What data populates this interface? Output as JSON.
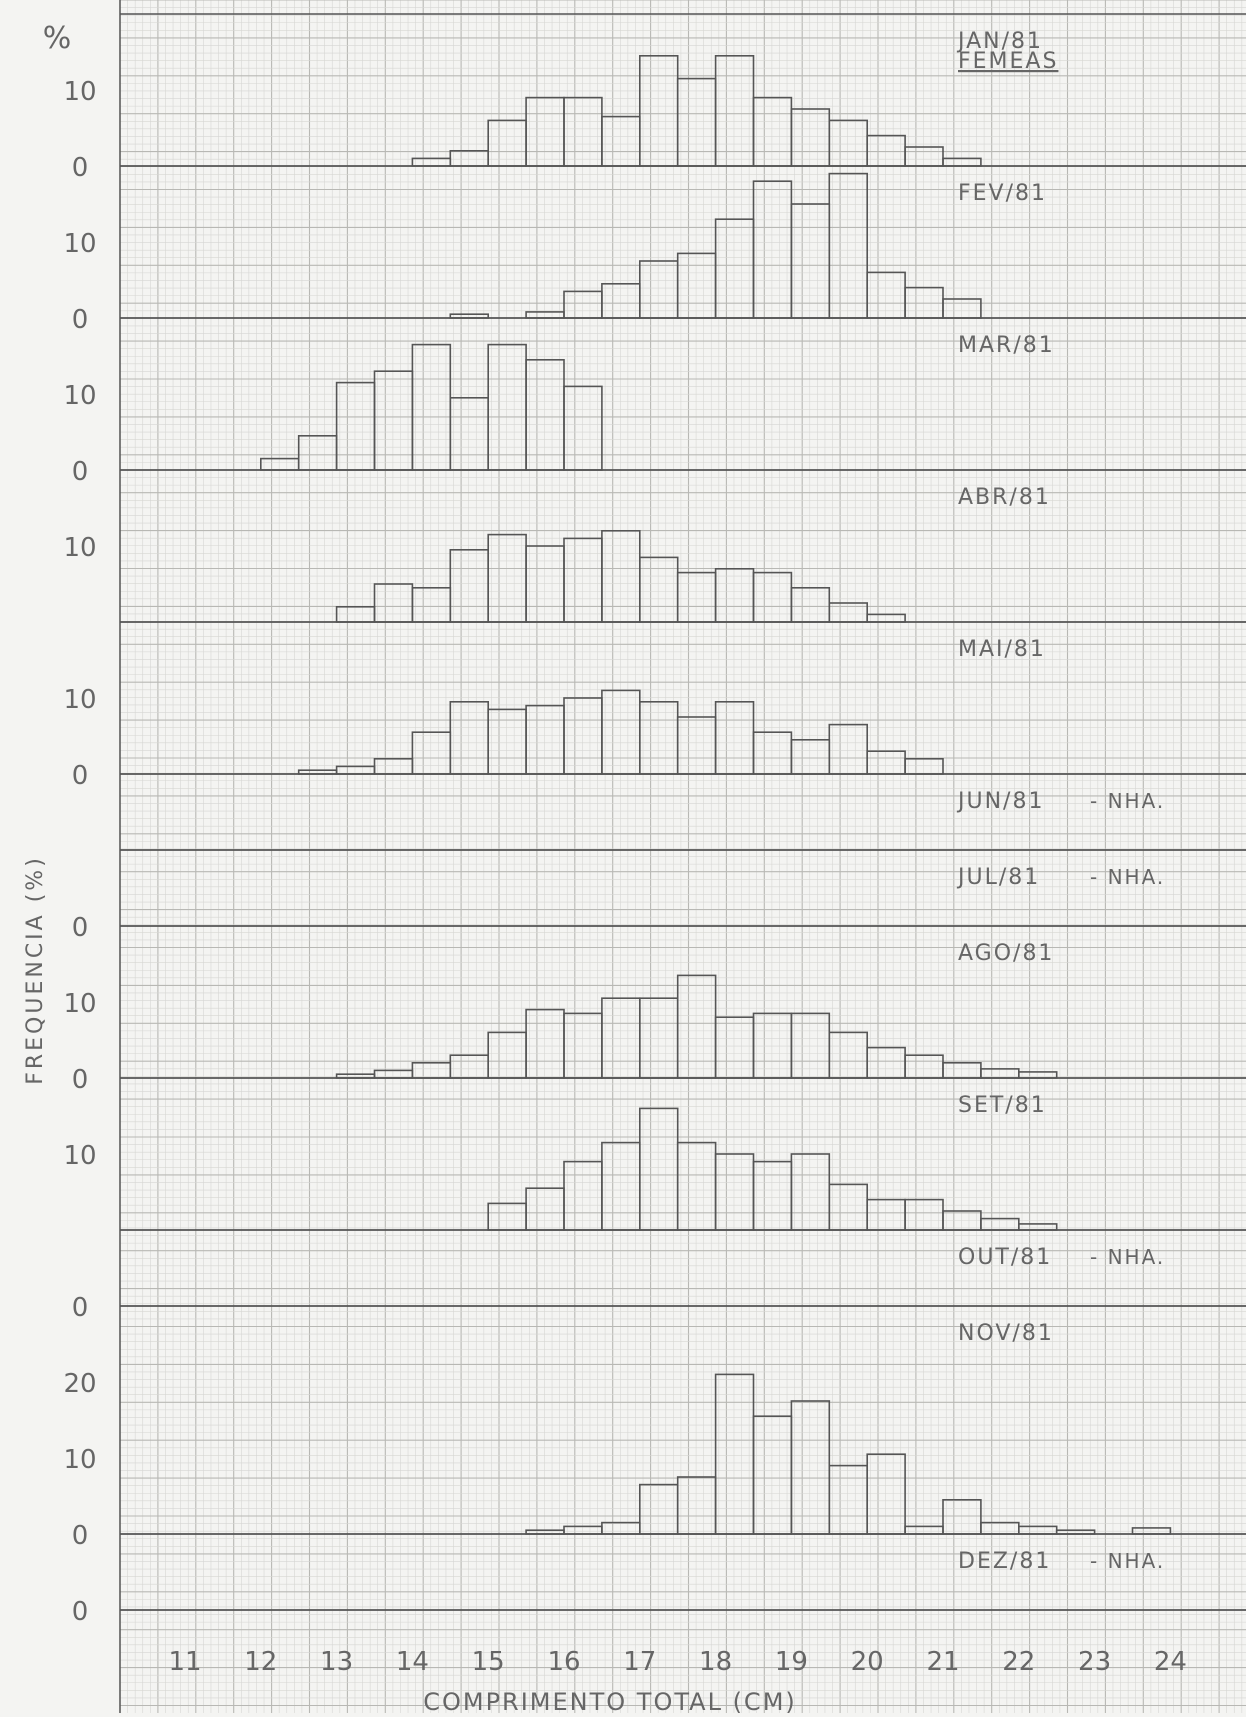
{
  "chart_data": {
    "type": "bar",
    "title": "FEMEAS",
    "ylabel": "FREQUENCIA (%)",
    "xlabel": "COMPRIMENTO TOTAL (CM)",
    "y_unit_label": "%",
    "grid": true,
    "x_ticks": [
      "11",
      "12",
      "13",
      "14",
      "15",
      "16",
      "17",
      "18",
      "19",
      "20",
      "21",
      "22",
      "23",
      "24"
    ],
    "x_tick_values": [
      11,
      12,
      13,
      14,
      15,
      16,
      17,
      18,
      19,
      20,
      21,
      22,
      23,
      24
    ],
    "bin_width": 0.5,
    "panels": [
      {
        "label": "JAN/81",
        "ymax": 20,
        "yticks": [
          "0",
          "10"
        ],
        "bins": [
          [
            14,
            1
          ],
          [
            14.5,
            2
          ],
          [
            15,
            6
          ],
          [
            15.5,
            9
          ],
          [
            16,
            9
          ],
          [
            16.5,
            6.5
          ],
          [
            17,
            14.5
          ],
          [
            17.5,
            11.5
          ],
          [
            18,
            14.5
          ],
          [
            18.5,
            9
          ],
          [
            19,
            7.5
          ],
          [
            19.5,
            6
          ],
          [
            20,
            4
          ],
          [
            20.5,
            2.5
          ],
          [
            21,
            1
          ]
        ]
      },
      {
        "label": "FEV/81",
        "ymax": 20,
        "yticks": [
          "0",
          "10"
        ],
        "bins": [
          [
            14.5,
            0.5
          ],
          [
            15.5,
            0.8
          ],
          [
            16,
            3.5
          ],
          [
            16.5,
            4.5
          ],
          [
            17,
            7.5
          ],
          [
            17.5,
            8.5
          ],
          [
            18,
            13
          ],
          [
            18.5,
            18
          ],
          [
            19,
            15
          ],
          [
            19.5,
            19
          ],
          [
            20,
            6
          ],
          [
            20.5,
            4
          ],
          [
            21,
            2.5
          ]
        ]
      },
      {
        "label": "MAR/81",
        "ymax": 20,
        "yticks": [
          "0",
          "10"
        ],
        "bins": [
          [
            12,
            1.5
          ],
          [
            12.5,
            4.5
          ],
          [
            13,
            11.5
          ],
          [
            13.5,
            13
          ],
          [
            14,
            16.5
          ],
          [
            14.5,
            9.5
          ],
          [
            15,
            16.5
          ],
          [
            15.5,
            14.5
          ],
          [
            16,
            11
          ]
        ]
      },
      {
        "label": "ABR/81",
        "ymax": 20,
        "yticks": [
          "10"
        ],
        "bins": [
          [
            13,
            2
          ],
          [
            13.5,
            5
          ],
          [
            14,
            4.5
          ],
          [
            14.5,
            9.5
          ],
          [
            15,
            11.5
          ],
          [
            15.5,
            10
          ],
          [
            16,
            11
          ],
          [
            16.5,
            12
          ],
          [
            17,
            8.5
          ],
          [
            17.5,
            6.5
          ],
          [
            18,
            7
          ],
          [
            18.5,
            6.5
          ],
          [
            19,
            4.5
          ],
          [
            19.5,
            2.5
          ],
          [
            20,
            1
          ]
        ]
      },
      {
        "label": "MAI/81",
        "ymax": 20,
        "yticks": [
          "0",
          "10"
        ],
        "bins": [
          [
            12.5,
            0.5
          ],
          [
            13,
            1
          ],
          [
            13.5,
            2
          ],
          [
            14,
            5.5
          ],
          [
            14.5,
            9.5
          ],
          [
            15,
            8.5
          ],
          [
            15.5,
            9
          ],
          [
            16,
            10
          ],
          [
            16.5,
            11
          ],
          [
            17,
            9.5
          ],
          [
            17.5,
            7.5
          ],
          [
            18,
            9.5
          ],
          [
            18.5,
            5.5
          ],
          [
            19,
            4.5
          ],
          [
            19.5,
            6.5
          ],
          [
            20,
            3
          ],
          [
            20.5,
            2
          ]
        ]
      },
      {
        "label": "JUN/81",
        "note": "- NHA.",
        "ymax": 10,
        "yticks": [],
        "bins": []
      },
      {
        "label": "JUL/81",
        "note": "- NHA.",
        "ymax": 10,
        "yticks": [
          "0"
        ],
        "bins": []
      },
      {
        "label": "AGO/81",
        "ymax": 20,
        "yticks": [
          "0",
          "10"
        ],
        "bins": [
          [
            13,
            0.5
          ],
          [
            13.5,
            1
          ],
          [
            14,
            2
          ],
          [
            14.5,
            3
          ],
          [
            15,
            6
          ],
          [
            15.5,
            9
          ],
          [
            16,
            8.5
          ],
          [
            16.5,
            10.5
          ],
          [
            17,
            10.5
          ],
          [
            17.5,
            13.5
          ],
          [
            18,
            8
          ],
          [
            18.5,
            8.5
          ],
          [
            19,
            8.5
          ],
          [
            19.5,
            6
          ],
          [
            20,
            4
          ],
          [
            20.5,
            3
          ],
          [
            21,
            2
          ],
          [
            21.5,
            1.2
          ],
          [
            22,
            0.8
          ]
        ]
      },
      {
        "label": "SET/81",
        "ymax": 20,
        "yticks": [
          "10"
        ],
        "bins": [
          [
            15,
            3.5
          ],
          [
            15.5,
            5.5
          ],
          [
            16,
            9
          ],
          [
            16.5,
            11.5
          ],
          [
            17,
            16
          ],
          [
            17.5,
            11.5
          ],
          [
            18,
            10
          ],
          [
            18.5,
            9
          ],
          [
            19,
            10
          ],
          [
            19.5,
            6
          ],
          [
            20,
            4
          ],
          [
            20.5,
            4
          ],
          [
            21,
            2.5
          ],
          [
            21.5,
            1.5
          ],
          [
            22,
            0.8
          ]
        ]
      },
      {
        "label": "OUT/81",
        "note": "- NHA.",
        "ymax": 10,
        "yticks": [
          "0"
        ],
        "bins": []
      },
      {
        "label": "NOV/81",
        "ymax": 30,
        "yticks": [
          "0",
          "10",
          "20"
        ],
        "bins": [
          [
            15.5,
            0.5
          ],
          [
            16,
            1
          ],
          [
            16.5,
            1.5
          ],
          [
            17,
            6.5
          ],
          [
            17.5,
            7.5
          ],
          [
            18,
            21
          ],
          [
            18.5,
            15.5
          ],
          [
            19,
            17.5
          ],
          [
            19.5,
            9
          ],
          [
            20,
            10.5
          ],
          [
            20.5,
            1
          ],
          [
            21,
            4.5
          ],
          [
            21.5,
            1.5
          ],
          [
            22,
            1
          ],
          [
            22.5,
            0.5
          ],
          [
            23.5,
            0.8
          ]
        ]
      },
      {
        "label": "DEZ/81",
        "note": "- NHA.",
        "ymax": 10,
        "yticks": [
          "0"
        ],
        "bins": []
      }
    ]
  },
  "colors": {
    "paper": "#f4f4f2",
    "grid_minor": "#d6d6d3",
    "grid_major": "#b8b8b4",
    "axis": "#555555",
    "bar_stroke": "#555555",
    "text": "#666666"
  }
}
